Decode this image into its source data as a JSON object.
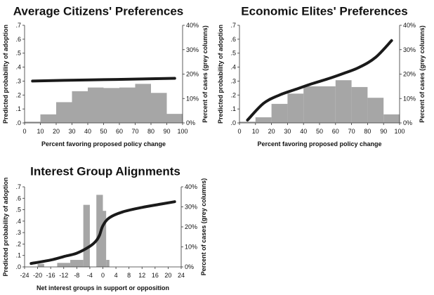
{
  "chart_data": [
    {
      "type": "bar",
      "title": "Average Citizens' Preferences",
      "xlabel": "Percent favoring proposed policy change",
      "ylabel": "Predicted probability of adoption",
      "y2label": "Percent of cases (grey columns)",
      "xlim": [
        0,
        100
      ],
      "ylim": [
        0,
        0.7
      ],
      "y2lim": [
        0,
        40
      ],
      "x_ticks": [
        "0",
        "10",
        "20",
        "30",
        "40",
        "50",
        "60",
        "70",
        "80",
        "90",
        "100"
      ],
      "y_ticks": [
        ".0",
        ".1",
        ".2",
        ".3",
        ".4",
        ".5",
        ".6",
        ".7"
      ],
      "y2_ticks": [
        "0%",
        "10%",
        "20%",
        "30%",
        "40%"
      ],
      "grid": false,
      "bars": {
        "name": "Percent of cases",
        "bin_edges": [
          0,
          10,
          20,
          30,
          40,
          50,
          60,
          70,
          80,
          90,
          100
        ],
        "values": [
          0.5,
          3.5,
          8.5,
          13,
          14.5,
          14.3,
          14.5,
          16,
          12.3,
          3.7
        ]
      },
      "line": {
        "name": "Predicted probability of adoption",
        "x": [
          5,
          25,
          50,
          75,
          95
        ],
        "y": [
          0.3,
          0.305,
          0.31,
          0.315,
          0.32
        ]
      }
    },
    {
      "type": "bar",
      "title": "Economic Elites' Preferences",
      "xlabel": "Percent favoring proposed policy change",
      "ylabel": "Predicted probability of adoption",
      "y2label": "Percent of cases (grey columns)",
      "xlim": [
        0,
        100
      ],
      "ylim": [
        0,
        0.7
      ],
      "y2lim": [
        0,
        40
      ],
      "x_ticks": [
        "0",
        "10",
        "20",
        "30",
        "40",
        "50",
        "60",
        "70",
        "80",
        "90",
        "100"
      ],
      "y_ticks": [
        ".0",
        ".1",
        ".2",
        ".3",
        ".4",
        ".5",
        ".6",
        ".7"
      ],
      "y2_ticks": [
        "0%",
        "10%",
        "20%",
        "30%",
        "40%"
      ],
      "grid": false,
      "bars": {
        "name": "Percent of cases",
        "bin_edges": [
          0,
          10,
          20,
          30,
          40,
          50,
          60,
          70,
          80,
          90,
          100
        ],
        "values": [
          0.5,
          2.3,
          7.8,
          12,
          15,
          15,
          17.5,
          14.7,
          10.3,
          3.5
        ]
      },
      "line": {
        "name": "Predicted probability of adoption",
        "x": [
          5,
          15,
          25,
          35,
          45,
          55,
          65,
          75,
          85,
          95
        ],
        "y": [
          0.02,
          0.14,
          0.2,
          0.24,
          0.28,
          0.315,
          0.355,
          0.4,
          0.47,
          0.59
        ]
      }
    },
    {
      "type": "bar",
      "title": "Interest Group Alignments",
      "xlabel": "Net interest groups in support or opposition",
      "ylabel": "Predicted probability of adoption",
      "y2label": "Percent of cases (grey columns)",
      "xlim": [
        -24,
        24
      ],
      "ylim": [
        0,
        0.7
      ],
      "y2lim": [
        0,
        40
      ],
      "x_ticks": [
        "-24",
        "-20",
        "-16",
        "-12",
        "-8",
        "-4",
        "0",
        "4",
        "8",
        "12",
        "16",
        "20",
        "24"
      ],
      "y_ticks": [
        ".0",
        ".1",
        ".2",
        ".3",
        ".4",
        ".5",
        ".6",
        ".7"
      ],
      "y2_ticks": [
        "0%",
        "10%",
        "20%",
        "30%",
        "40%"
      ],
      "grid": false,
      "bars": {
        "name": "Percent of cases",
        "bin_edges": [
          -20,
          -18,
          -14,
          -10,
          -6,
          -4,
          -2,
          0,
          1,
          2,
          6
        ],
        "values": [
          1.5,
          0,
          2,
          3.5,
          31,
          0,
          36,
          28,
          3.5,
          0
        ]
      },
      "line": {
        "name": "Predicted probability of adoption",
        "x": [
          -22,
          -16,
          -12,
          -8,
          -4,
          -2,
          -1,
          0,
          2,
          6,
          12,
          18,
          22
        ],
        "y": [
          0.03,
          0.06,
          0.09,
          0.12,
          0.18,
          0.23,
          0.28,
          0.36,
          0.43,
          0.48,
          0.52,
          0.55,
          0.57
        ]
      }
    }
  ]
}
